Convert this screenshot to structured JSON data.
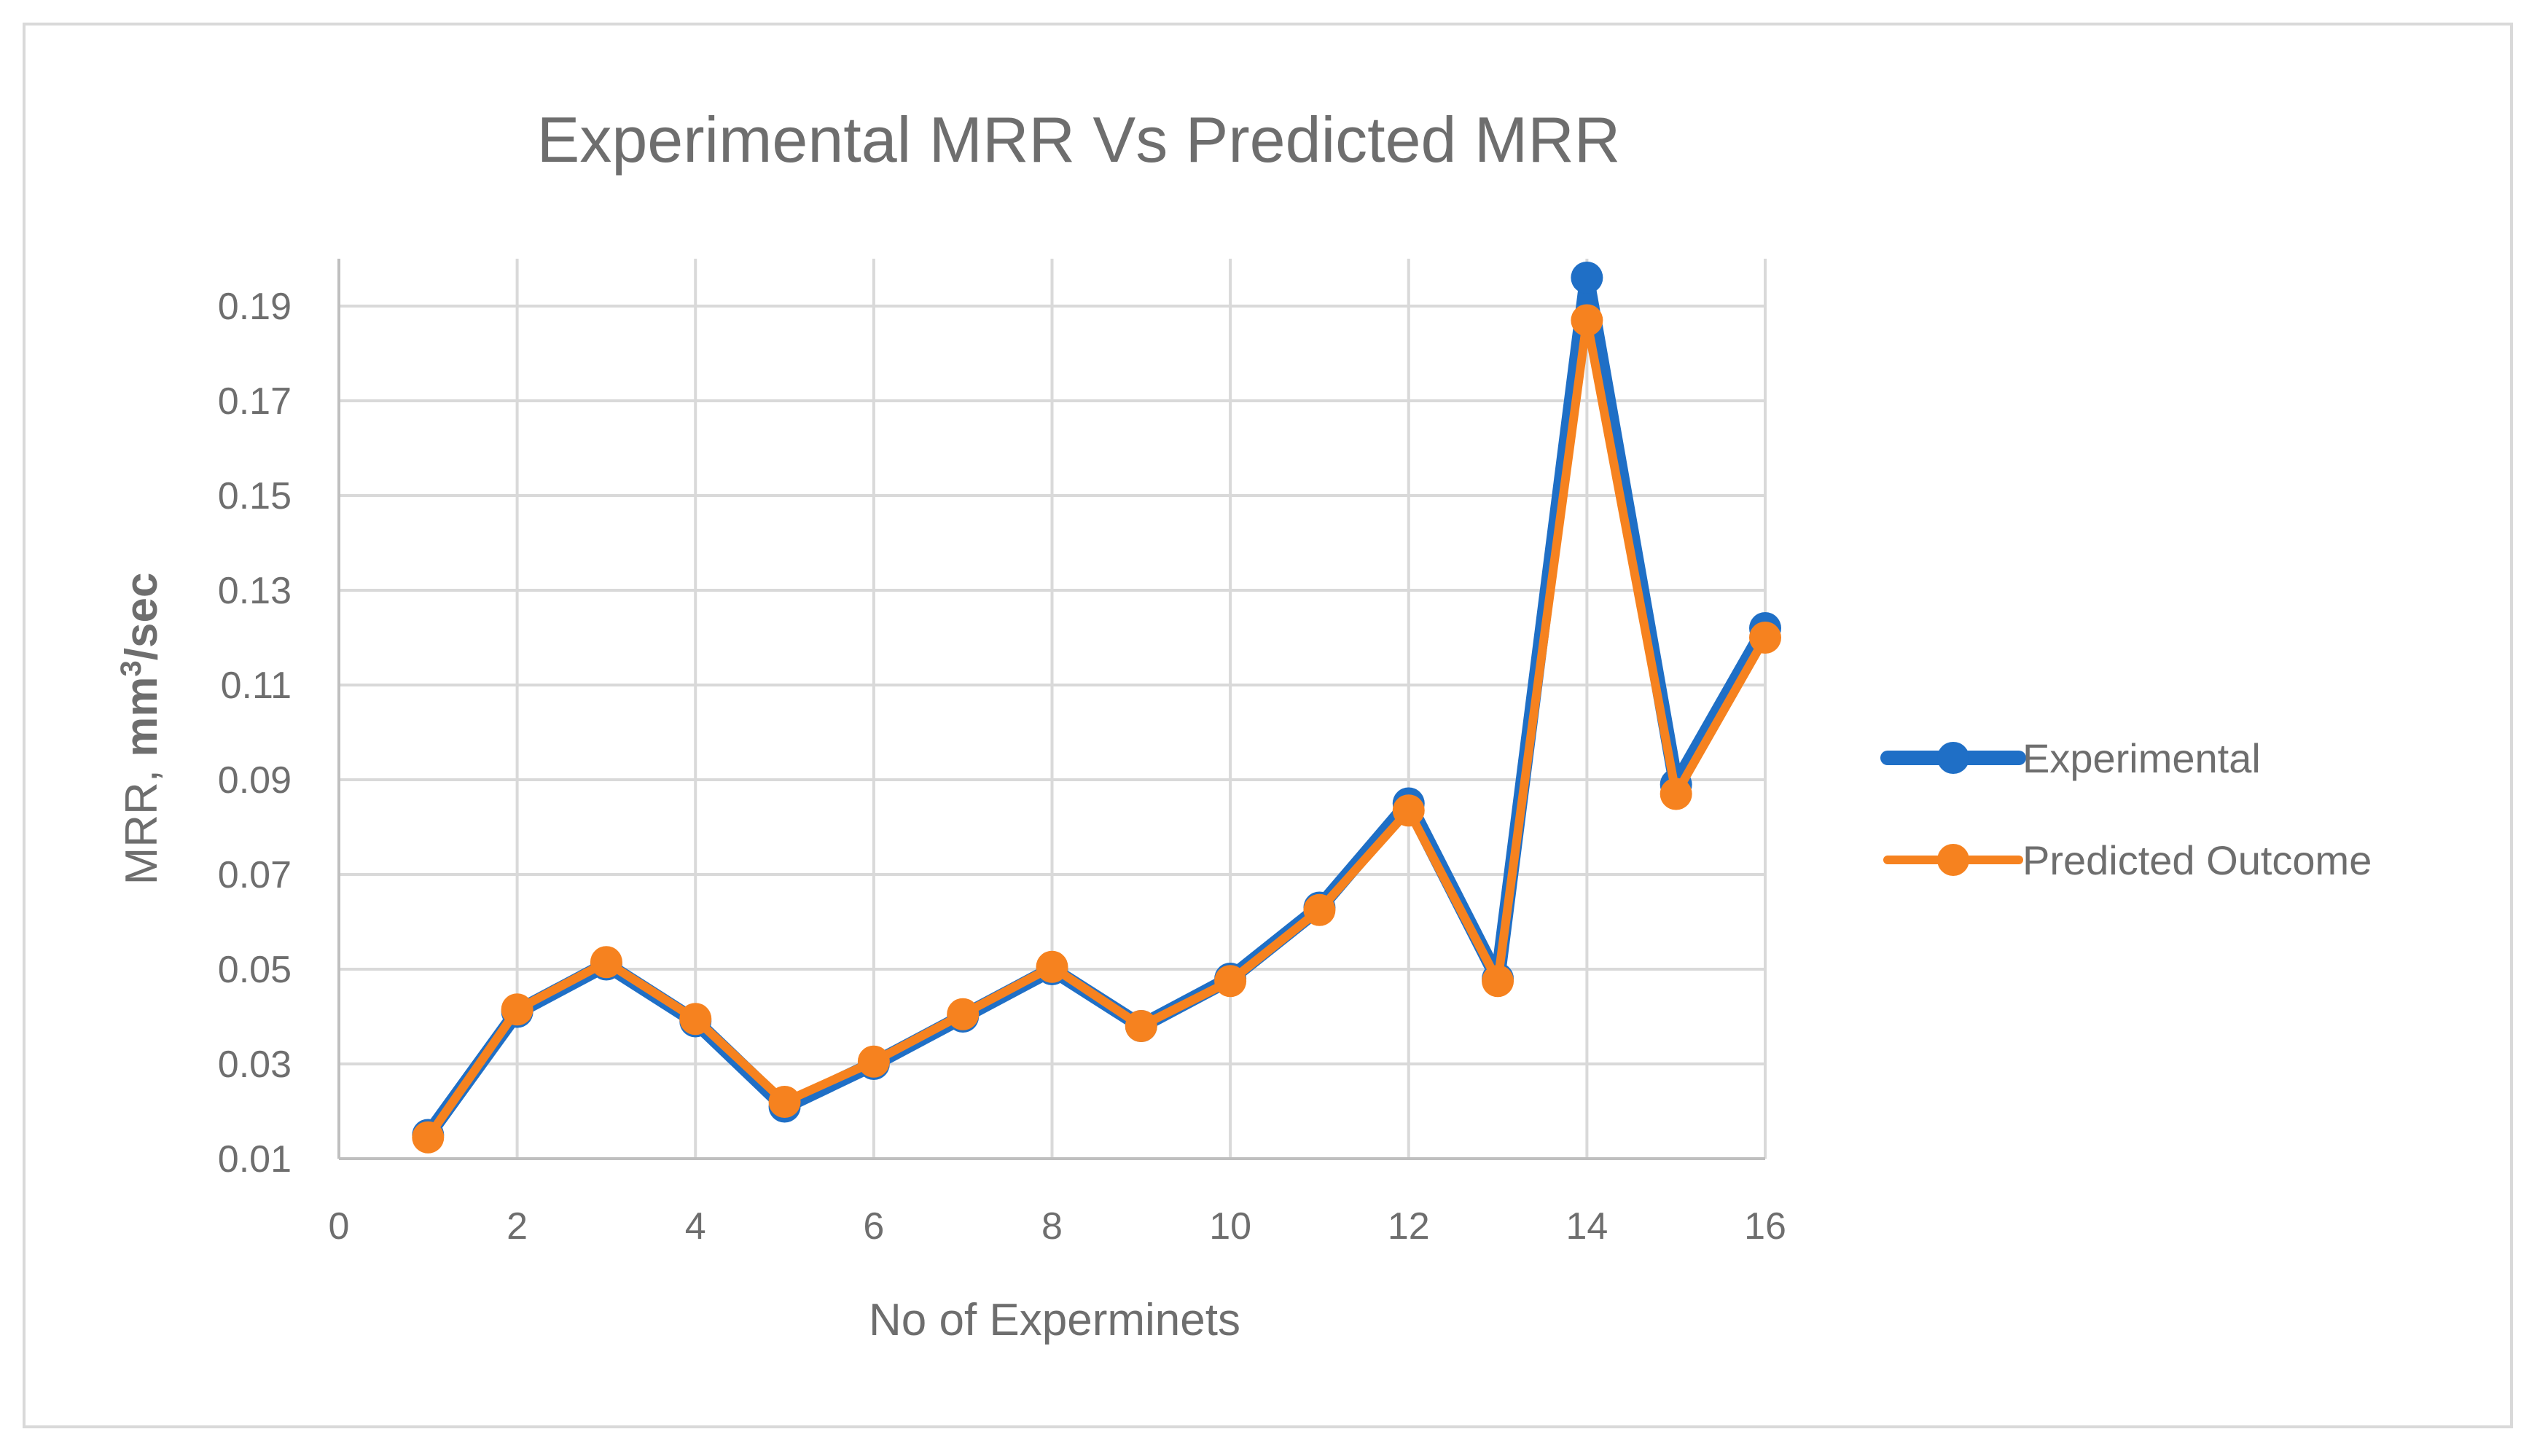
{
  "chart_data": {
    "type": "line",
    "title": "Experimental MRR Vs Predicted MRR",
    "xlabel": "No of Experminets",
    "ylabel_main": "MRR, ",
    "ylabel_unit": "mm",
    "ylabel_sup": "3",
    "ylabel_tail": "/sec",
    "xlim": [
      0,
      16
    ],
    "ylim": [
      0.01,
      0.2
    ],
    "xticks": [
      0,
      2,
      4,
      6,
      8,
      10,
      12,
      14,
      16
    ],
    "yticks": [
      0.01,
      0.03,
      0.05,
      0.07,
      0.09,
      0.11,
      0.13,
      0.15,
      0.17,
      0.19
    ],
    "grid": true,
    "legend_position": "right",
    "x": [
      1,
      2,
      3,
      4,
      5,
      6,
      7,
      8,
      9,
      10,
      11,
      12,
      13,
      14,
      15,
      16
    ],
    "series": [
      {
        "name": "Experimental",
        "color": "#1f6fc6",
        "values": [
          0.015,
          0.041,
          0.051,
          0.039,
          0.021,
          0.03,
          0.04,
          0.05,
          0.038,
          0.048,
          0.063,
          0.085,
          0.048,
          0.196,
          0.089,
          0.122
        ]
      },
      {
        "name": "Predicted Outcome",
        "color": "#f6821f",
        "values": [
          0.0145,
          0.0415,
          0.0515,
          0.0395,
          0.022,
          0.0305,
          0.0405,
          0.0505,
          0.038,
          0.0475,
          0.0625,
          0.0835,
          0.0475,
          0.187,
          0.087,
          0.12
        ]
      }
    ]
  }
}
